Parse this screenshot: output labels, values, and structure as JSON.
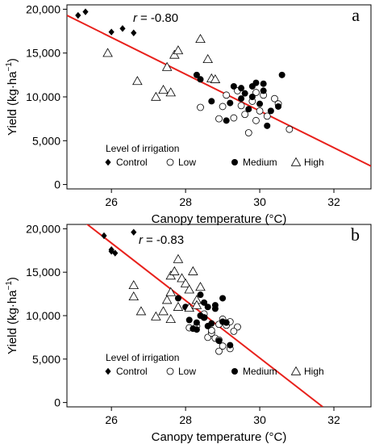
{
  "chart_data": [
    {
      "type": "scatter",
      "panel_label": "a",
      "r_prefix": "r",
      "r_text": "= -0.80",
      "xlabel": "Canopy temperature (°C)",
      "ylabel": "Yield (kg·ha",
      "ylabel_sup": "−1",
      "ylabel_close": ")",
      "xlim": [
        24.8,
        33
      ],
      "ylim": [
        -500,
        20500
      ],
      "xticks": [
        26,
        28,
        30,
        32
      ],
      "yticks": [
        0,
        5000,
        10000,
        15000,
        20000
      ],
      "ytick_labels": [
        "0",
        "5,000",
        "10,000",
        "15,000",
        "20,000"
      ],
      "grid": false,
      "legend": {
        "title": "Level of irrigation",
        "position": "bottom-left",
        "entries": [
          "Control",
          "Low",
          "Medium",
          "High"
        ]
      },
      "fit_line": {
        "color": "#e8211c",
        "x": [
          24.8,
          33
        ],
        "y": [
          19300,
          2100
        ]
      },
      "series": [
        {
          "name": "Control",
          "marker": "diamond",
          "points": [
            [
              25.1,
              19300
            ],
            [
              25.3,
              19700
            ],
            [
              26.0,
              17400
            ],
            [
              26.3,
              17800
            ],
            [
              26.6,
              17300
            ]
          ]
        },
        {
          "name": "Low",
          "marker": "circle-open",
          "points": [
            [
              28.4,
              8800
            ],
            [
              28.9,
              7500
            ],
            [
              29.0,
              8900
            ],
            [
              29.1,
              10200
            ],
            [
              29.3,
              7600
            ],
            [
              29.5,
              9000
            ],
            [
              29.6,
              8000
            ],
            [
              29.7,
              5900
            ],
            [
              29.8,
              9500
            ],
            [
              29.9,
              7300
            ],
            [
              30.0,
              8400
            ],
            [
              30.1,
              10200
            ],
            [
              30.2,
              7800
            ],
            [
              30.4,
              9800
            ],
            [
              30.5,
              9200
            ],
            [
              30.8,
              6300
            ],
            [
              29.4,
              10700
            ],
            [
              29.9,
              10500
            ]
          ]
        },
        {
          "name": "Medium",
          "marker": "circle-filled",
          "points": [
            [
              28.3,
              12500
            ],
            [
              28.4,
              12000
            ],
            [
              28.7,
              9500
            ],
            [
              29.1,
              7300
            ],
            [
              29.2,
              9300
            ],
            [
              29.3,
              11200
            ],
            [
              29.5,
              11000
            ],
            [
              29.5,
              9800
            ],
            [
              29.7,
              8600
            ],
            [
              29.8,
              10000
            ],
            [
              29.9,
              11600
            ],
            [
              30.0,
              9200
            ],
            [
              30.1,
              11500
            ],
            [
              30.2,
              6700
            ],
            [
              30.3,
              8400
            ],
            [
              30.6,
              12500
            ],
            [
              30.1,
              10700
            ],
            [
              29.6,
              10400
            ],
            [
              29.8,
              11200
            ],
            [
              30.5,
              8900
            ]
          ]
        },
        {
          "name": "High",
          "marker": "triangle-open",
          "points": [
            [
              25.9,
              15000
            ],
            [
              26.7,
              11800
            ],
            [
              27.2,
              10000
            ],
            [
              27.4,
              10800
            ],
            [
              27.6,
              10500
            ],
            [
              27.5,
              13400
            ],
            [
              27.7,
              14800
            ],
            [
              27.8,
              15300
            ],
            [
              28.4,
              16600
            ],
            [
              28.6,
              14300
            ],
            [
              28.7,
              12100
            ],
            [
              28.8,
              12000
            ]
          ]
        }
      ]
    },
    {
      "type": "scatter",
      "panel_label": "b",
      "r_prefix": "r",
      "r_text": "= -0.83",
      "xlabel": "Canopy temperature (°C)",
      "ylabel": "Yield (kg·ha",
      "ylabel_sup": "−1",
      "ylabel_close": ")",
      "xlim": [
        24.8,
        33
      ],
      "ylim": [
        -500,
        20500
      ],
      "xticks": [
        26,
        28,
        30,
        32
      ],
      "yticks": [
        0,
        5000,
        10000,
        15000,
        20000
      ],
      "ytick_labels": [
        "0",
        "5,000",
        "10,000",
        "15,000",
        "20,000"
      ],
      "grid": false,
      "legend": {
        "title": "Level of irrigation",
        "position": "bottom-left",
        "entries": [
          "Control",
          "Low",
          "Medium",
          "High"
        ]
      },
      "fit_line": {
        "color": "#e8211c",
        "x": [
          25.2,
          31.7
        ],
        "y": [
          21000,
          -500
        ]
      },
      "series": [
        {
          "name": "Control",
          "marker": "diamond",
          "points": [
            [
              25.8,
              19200
            ],
            [
              26.0,
              17600
            ],
            [
              26.1,
              17200
            ],
            [
              26.0,
              17400
            ],
            [
              26.6,
              19600
            ]
          ]
        },
        {
          "name": "Low",
          "marker": "circle-open",
          "points": [
            [
              28.1,
              8600
            ],
            [
              28.3,
              8800
            ],
            [
              28.5,
              9800
            ],
            [
              28.6,
              7500
            ],
            [
              28.7,
              8000
            ],
            [
              28.8,
              7400
            ],
            [
              28.9,
              7200
            ],
            [
              29.0,
              6500
            ],
            [
              29.1,
              8900
            ],
            [
              29.2,
              6200
            ],
            [
              28.9,
              5900
            ],
            [
              29.4,
              8700
            ],
            [
              29.3,
              8200
            ],
            [
              29.0,
              9600
            ],
            [
              28.7,
              8300
            ],
            [
              29.2,
              9300
            ],
            [
              28.5,
              10200
            ],
            [
              28.9,
              9000
            ]
          ]
        },
        {
          "name": "Medium",
          "marker": "circle-filled",
          "points": [
            [
              27.8,
              12000
            ],
            [
              28.0,
              11000
            ],
            [
              28.1,
              9500
            ],
            [
              28.2,
              8500
            ],
            [
              28.3,
              9200
            ],
            [
              28.4,
              10000
            ],
            [
              28.4,
              12400
            ],
            [
              28.5,
              11500
            ],
            [
              28.5,
              9800
            ],
            [
              28.6,
              11000
            ],
            [
              28.7,
              9100
            ],
            [
              28.8,
              11200
            ],
            [
              28.9,
              7100
            ],
            [
              29.0,
              12000
            ],
            [
              29.1,
              9200
            ],
            [
              29.2,
              6600
            ],
            [
              28.6,
              8800
            ],
            [
              28.8,
              10800
            ],
            [
              28.3,
              8400
            ],
            [
              29.0,
              9300
            ]
          ]
        },
        {
          "name": "High",
          "marker": "triangle-open",
          "points": [
            [
              26.6,
              13500
            ],
            [
              26.6,
              12200
            ],
            [
              26.8,
              10500
            ],
            [
              27.2,
              9900
            ],
            [
              27.4,
              10500
            ],
            [
              27.5,
              11800
            ],
            [
              27.6,
              12700
            ],
            [
              27.6,
              14600
            ],
            [
              27.7,
              15100
            ],
            [
              27.8,
              16500
            ],
            [
              27.9,
              14300
            ],
            [
              28.0,
              13700
            ],
            [
              28.1,
              13000
            ],
            [
              28.1,
              10900
            ],
            [
              28.3,
              11800
            ],
            [
              28.2,
              15100
            ],
            [
              28.4,
              13300
            ],
            [
              28.3,
              11200
            ],
            [
              27.8,
              11000
            ],
            [
              27.6,
              9600
            ]
          ]
        }
      ]
    }
  ]
}
